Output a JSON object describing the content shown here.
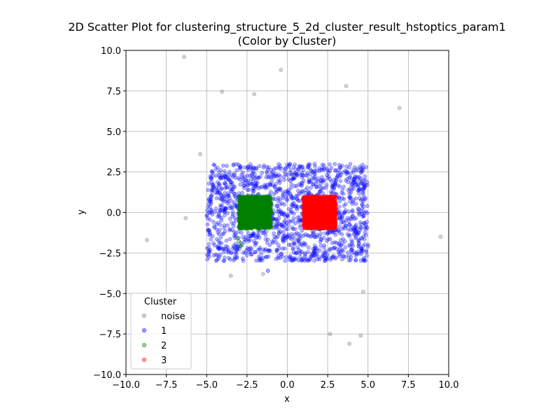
{
  "chart_data": {
    "type": "scatter",
    "title": "2D Scatter Plot for clustering_structure_5_2d_cluster_result_hstoptics_param1",
    "subtitle": "(Color by Cluster)",
    "xlabel": "x",
    "ylabel": "y",
    "xlim": [
      -10,
      10
    ],
    "ylim": [
      -10,
      10
    ],
    "xticks": [
      -10.0,
      -7.5,
      -5.0,
      -2.5,
      0.0,
      2.5,
      5.0,
      7.5,
      10.0
    ],
    "yticks": [
      -10.0,
      -7.5,
      -5.0,
      -2.5,
      0.0,
      2.5,
      5.0,
      7.5,
      10.0
    ],
    "xtick_labels": [
      "−10.0",
      "−7.5",
      "−5.0",
      "−2.5",
      "0.0",
      "2.5",
      "5.0",
      "7.5",
      "10.0"
    ],
    "ytick_labels": [
      "−10.0",
      "−7.5",
      "−5.0",
      "−2.5",
      "0.0",
      "2.5",
      "5.0",
      "7.5",
      "10.0"
    ],
    "grid": true,
    "legend": {
      "title": "Cluster",
      "placement": "lower-left"
    },
    "series": [
      {
        "name": "noise",
        "color": "#808080",
        "regions": [],
        "points": [
          [
            -6.4,
            9.6
          ],
          [
            -0.4,
            8.8
          ],
          [
            3.65,
            7.8
          ],
          [
            -4.05,
            7.45
          ],
          [
            -2.05,
            7.3
          ],
          [
            6.95,
            6.45
          ],
          [
            -5.4,
            3.6
          ],
          [
            -6.3,
            -0.35
          ],
          [
            -8.7,
            -1.7
          ],
          [
            9.5,
            -1.5
          ],
          [
            -3.5,
            -3.9
          ],
          [
            -1.5,
            -3.8
          ],
          [
            4.7,
            -4.9
          ],
          [
            2.65,
            -7.5
          ],
          [
            4.55,
            -7.6
          ],
          [
            3.85,
            -8.1
          ]
        ]
      },
      {
        "name": "1",
        "color": "#0000ff",
        "regions": [
          {
            "x": [
              -5.0,
              5.0
            ],
            "y": [
              -3.0,
              3.0
            ],
            "count": 1500
          }
        ],
        "points": [
          [
            -1.2,
            -3.6
          ]
        ]
      },
      {
        "name": "2",
        "color": "#008000",
        "regions": [
          {
            "x": [
              -3.0,
              -1.0
            ],
            "y": [
              -1.0,
              1.0
            ],
            "count": 1400
          }
        ],
        "points": [
          [
            -3.0,
            -1.8
          ],
          [
            -2.95,
            -2.1
          ],
          [
            -2.8,
            -2.0
          ],
          [
            -3.1,
            -1.6
          ]
        ]
      },
      {
        "name": "3",
        "color": "#ff0000",
        "regions": [
          {
            "x": [
              1.0,
              3.0
            ],
            "y": [
              -1.0,
              1.0
            ],
            "count": 1600
          }
        ],
        "points": []
      }
    ]
  }
}
